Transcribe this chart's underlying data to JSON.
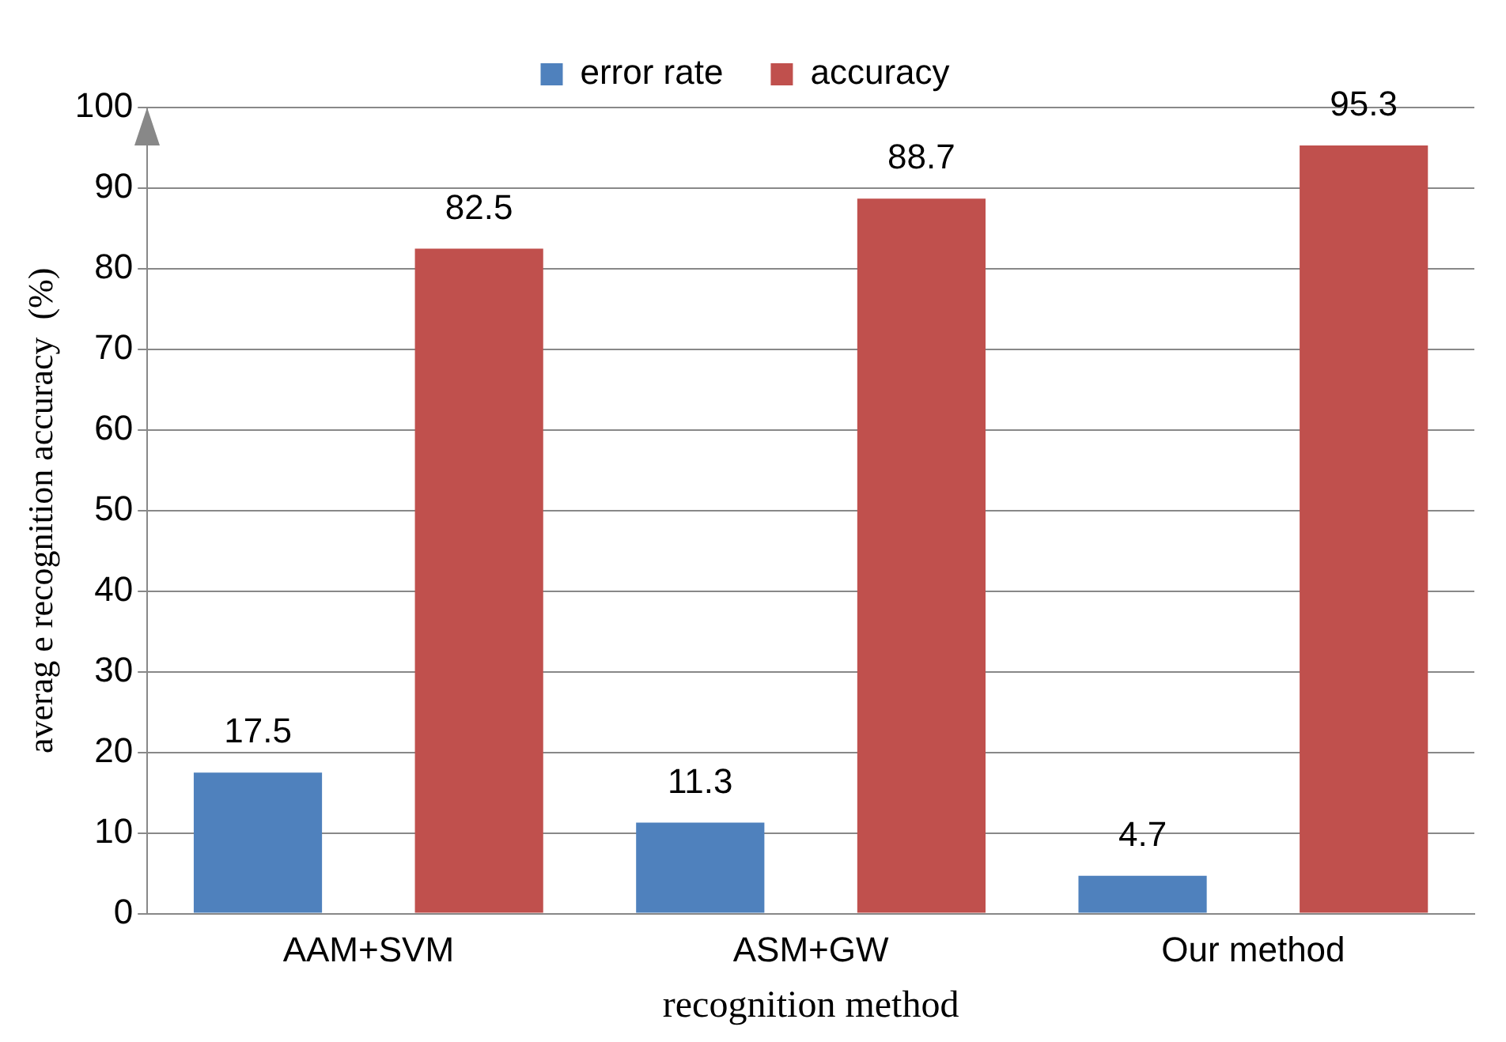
{
  "chart_data": {
    "type": "bar",
    "xlabel": "recognition method",
    "ylabel": "averag e recognition accuracy  (%)",
    "categories": [
      "AAM+SVM",
      "ASM+GW",
      "Our method"
    ],
    "series": [
      {
        "name": "error rate",
        "color": "#4f81bd",
        "values": [
          17.5,
          11.3,
          4.7
        ]
      },
      {
        "name": "accuracy",
        "color": "#c0504d",
        "values": [
          82.5,
          88.7,
          95.3
        ]
      }
    ],
    "ylim": [
      0,
      100
    ],
    "yticks": [
      0,
      10,
      20,
      30,
      40,
      50,
      60,
      70,
      80,
      90,
      100
    ],
    "grid": "y",
    "legend": "top",
    "data_labels": true
  }
}
